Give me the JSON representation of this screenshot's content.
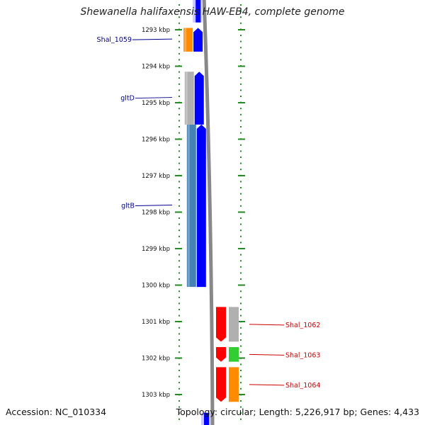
{
  "title": "Shewanella halifaxensis HAW-EB4, complete genome",
  "footer": {
    "accession": "Accession: NC_010334",
    "summary": "Topology: circular; Length: 5,226,917 bp; Genes: 4,433"
  },
  "ruler": {
    "start_kbp": 1292.25,
    "end_kbp": 1303.6,
    "ticks": [
      {
        "kbp": 1293,
        "label": "1293 kbp"
      },
      {
        "kbp": 1294,
        "label": "1294 kbp"
      },
      {
        "kbp": 1295,
        "label": "1295 kbp"
      },
      {
        "kbp": 1296,
        "label": "1296 kbp"
      },
      {
        "kbp": 1297,
        "label": "1297 kbp"
      },
      {
        "kbp": 1298,
        "label": "1298 kbp"
      },
      {
        "kbp": 1299,
        "label": "1299 kbp"
      },
      {
        "kbp": 1300,
        "label": "1300 kbp"
      },
      {
        "kbp": 1301,
        "label": "1301 kbp"
      },
      {
        "kbp": 1302,
        "label": "1302 kbp"
      },
      {
        "kbp": 1303,
        "label": "1303 kbp"
      }
    ]
  },
  "colors": {
    "forward_cds": "#0000ff",
    "reverse_cds": "#ff0000",
    "label_forward": "#00008b",
    "label_reverse": "#cc0000",
    "ruler": "#228b22",
    "backbone": "#888888",
    "cog_orange": "#ff8c00",
    "cog_steelblue": "#4682b4",
    "cog_grey": "#b0b0b0",
    "cog_green": "#32cd32",
    "faded_blue": "#c8c8ff"
  },
  "features": [
    {
      "strand": "forward",
      "start": 1292.0,
      "end": 1292.8,
      "cog": "faded_blue",
      "label": ""
    },
    {
      "strand": "forward",
      "start": 1292.95,
      "end": 1293.6,
      "cog": "cog_orange",
      "label": "Shal_1059"
    },
    {
      "strand": "forward",
      "start": 1294.15,
      "end": 1295.6,
      "cog": "cog_grey",
      "label": "gltD"
    },
    {
      "strand": "forward",
      "start": 1295.6,
      "end": 1300.05,
      "cog": "cog_steelblue",
      "label": "gltB"
    },
    {
      "strand": "reverse",
      "start": 1300.6,
      "end": 1301.55,
      "cog": "cog_grey",
      "label": "Shal_1062"
    },
    {
      "strand": "reverse",
      "start": 1301.7,
      "end": 1302.1,
      "cog": "cog_green",
      "label": "Shal_1063"
    },
    {
      "strand": "reverse",
      "start": 1302.25,
      "end": 1303.2,
      "cog": "cog_orange",
      "label": "Shal_1064"
    },
    {
      "strand": "forward",
      "start": 1303.5,
      "end": 1304.5,
      "cog": "faded_blue",
      "label": ""
    }
  ]
}
